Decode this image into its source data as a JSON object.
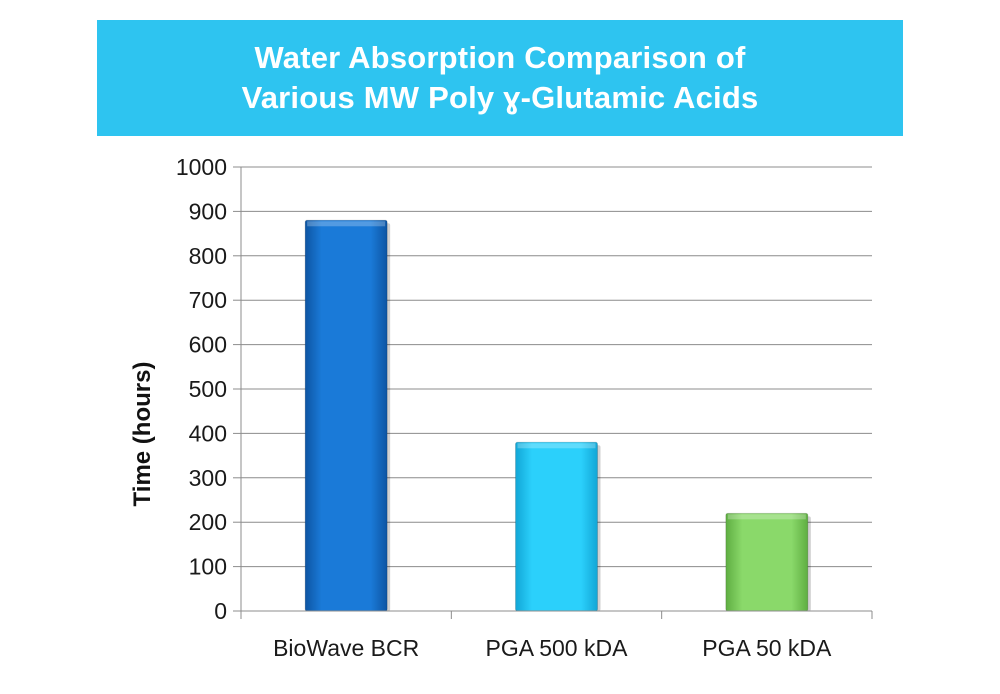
{
  "title_lines": [
    "Water Absorption Comparison of",
    "Various MW Poly ɣ-Glutamic Acids"
  ],
  "colors": {
    "banner": "#2ec4f0",
    "grid": "#8c8c8c",
    "axis": "#8c8c8c"
  },
  "chart_data": {
    "type": "bar",
    "title": "Water Absorption Comparison of Various MW Poly ɣ-Glutamic Acids",
    "categories": [
      "BioWave BCR",
      "PGA 500 kDA",
      "PGA 50 kDA"
    ],
    "values": [
      880,
      380,
      220
    ],
    "bar_colors": [
      "#1270cf",
      "#1ec8f5",
      "#7fd15e"
    ],
    "xlabel": "",
    "ylabel": "Time (hours)",
    "ylim": [
      0,
      1000
    ],
    "yticks": [
      0,
      100,
      200,
      300,
      400,
      500,
      600,
      700,
      800,
      900,
      1000
    ],
    "grid": true,
    "legend": "none"
  }
}
